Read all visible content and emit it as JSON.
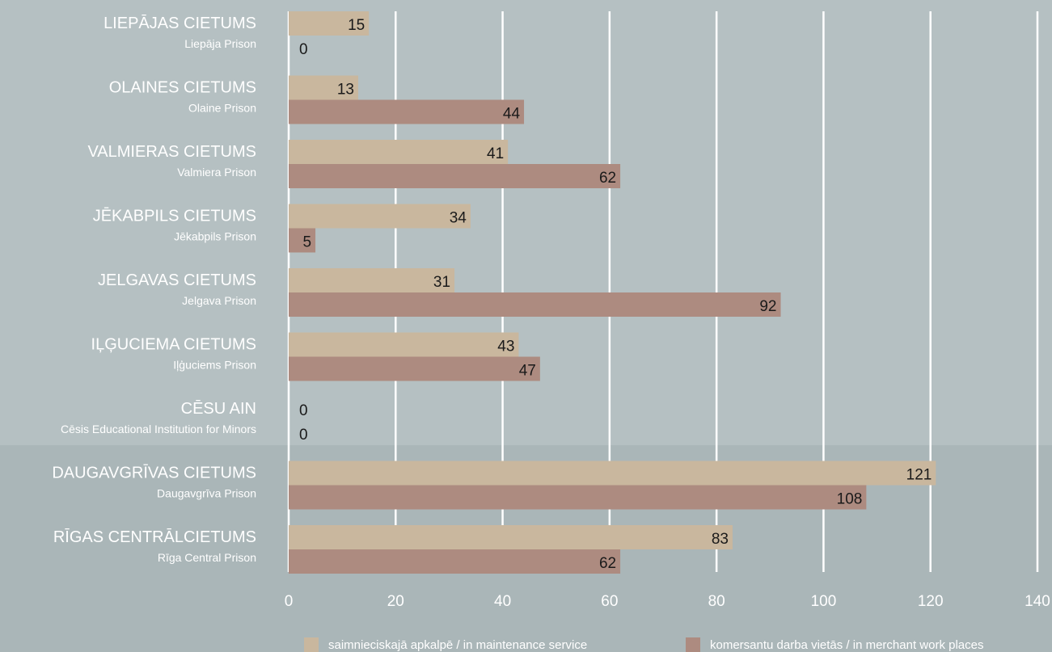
{
  "chart_data": {
    "type": "bar",
    "orientation": "horizontal",
    "categories": [
      {
        "name": "LIEPĀJAS CIETUMS",
        "subtitle": "Liepāja Prison"
      },
      {
        "name": "OLAINES CIETUMS",
        "subtitle": "Olaine Prison"
      },
      {
        "name": "VALMIERAS CIETUMS",
        "subtitle": "Valmiera Prison"
      },
      {
        "name": "JĒKABPILS CIETUMS",
        "subtitle": "Jēkabpils Prison"
      },
      {
        "name": "JELGAVAS CIETUMS",
        "subtitle": "Jelgava Prison"
      },
      {
        "name": "IĻĢUCIEMA CIETUMS",
        "subtitle": "Iļģuciems Prison"
      },
      {
        "name": "CĒSU AIN",
        "subtitle": "Cēsis Educational Institution for Minors"
      },
      {
        "name": "DAUGAVGRĪVAS CIETUMS",
        "subtitle": "Daugavgrīva Prison"
      },
      {
        "name": "RĪGAS CENTRĀLCIETUMS",
        "subtitle": "Rīga Central Prison"
      }
    ],
    "series": [
      {
        "name": "saimnieciskajā apkalpē / in maintenance service",
        "color": "#c9b79e",
        "values": [
          15,
          13,
          41,
          34,
          31,
          43,
          0,
          121,
          83
        ]
      },
      {
        "name": "komersantu darba vietās / in merchant work places",
        "color": "#ad8b80",
        "values": [
          0,
          44,
          62,
          5,
          92,
          47,
          0,
          108,
          62
        ]
      }
    ],
    "xlim": [
      0,
      140
    ],
    "xticks": [
      0,
      20,
      40,
      60,
      80,
      100,
      120,
      140
    ],
    "grid": true,
    "legend_position": "bottom",
    "title": "",
    "xlabel": "",
    "ylabel": ""
  }
}
